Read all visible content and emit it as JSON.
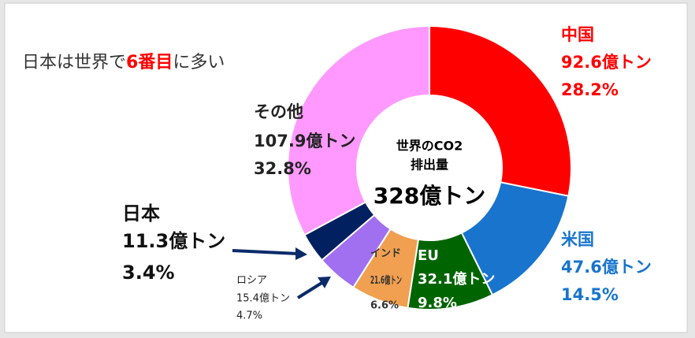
{
  "chart_data": {
    "type": "donut",
    "subtitle_parts": [
      "日本は世界で",
      "6番目",
      "に多い"
    ],
    "center_lines": [
      "世界のCO2",
      "排出量"
    ],
    "center_total": "328億トン",
    "categories": [
      "中国",
      "米国",
      "EU",
      "インド",
      "ロシア",
      "日本",
      "その他"
    ],
    "values": [
      92.6,
      47.6,
      32.1,
      21.6,
      15.4,
      11.3,
      107.9
    ],
    "value_labels": [
      "92.6億トン",
      "47.6億トン",
      "32.1億トン",
      "21.6億トン",
      "15.4億トン",
      "11.3億トン",
      "107.9億トン"
    ],
    "percentages": [
      28.2,
      14.5,
      9.8,
      6.6,
      4.7,
      3.4,
      32.8
    ],
    "percentage_labels": [
      "28.2%",
      "14.5%",
      "9.8%",
      "6.6%",
      "4.7%",
      "3.4%",
      "32.8%"
    ],
    "colors": [
      "#ff0000",
      "#1874cd",
      "#006400",
      "#f0a050",
      "#a070f0",
      "#002060",
      "#ff99ff"
    ]
  }
}
